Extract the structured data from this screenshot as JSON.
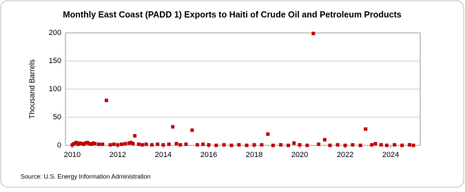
{
  "chart_data": {
    "type": "scatter",
    "title": "Monthly East Coast (PADD 1) Exports to Haiti of Crude Oil and Petroleum Products",
    "y_label": "Thousand Barrels",
    "source": "Source: U.S. Energy Information Administration",
    "color": "#c00000",
    "x": [
      2010.0,
      2010.08,
      2010.17,
      2010.25,
      2010.33,
      2010.42,
      2010.5,
      2010.58,
      2010.67,
      2010.75,
      2010.83,
      2010.92,
      2011.0,
      2011.17,
      2011.33,
      2011.5,
      2011.67,
      2011.83,
      2012.0,
      2012.17,
      2012.33,
      2012.5,
      2012.58,
      2012.67,
      2012.75,
      2012.92,
      2013.08,
      2013.25,
      2013.5,
      2013.75,
      2014.0,
      2014.25,
      2014.42,
      2014.58,
      2014.75,
      2015.0,
      2015.27,
      2015.5,
      2015.75,
      2016.0,
      2016.33,
      2016.67,
      2017.0,
      2017.33,
      2017.67,
      2018.0,
      2018.33,
      2018.6,
      2018.83,
      2019.17,
      2019.5,
      2019.75,
      2020.0,
      2020.33,
      2020.6,
      2020.83,
      2021.1,
      2021.33,
      2021.67,
      2022.0,
      2022.33,
      2022.67,
      2022.9,
      2023.17,
      2023.33,
      2023.58,
      2023.83,
      2024.17,
      2024.5,
      2024.83,
      2025.0
    ],
    "values": [
      1,
      3,
      5,
      2,
      4,
      3,
      2,
      4,
      5,
      3,
      2,
      4,
      3,
      2,
      2,
      80,
      1,
      2,
      1,
      2,
      3,
      4,
      5,
      3,
      17,
      2,
      1,
      2,
      1,
      2,
      1,
      2,
      33,
      3,
      1,
      2,
      27,
      1,
      2,
      1,
      0,
      1,
      0,
      1,
      0,
      1,
      1,
      20,
      0,
      1,
      0,
      4,
      1,
      0,
      199,
      2,
      10,
      0,
      1,
      0,
      1,
      0,
      29,
      1,
      3,
      1,
      0,
      1,
      0,
      1,
      0
    ],
    "xlim": [
      2009.7,
      2025.3
    ],
    "xticks": [
      2010,
      2012,
      2014,
      2016,
      2018,
      2020,
      2022,
      2024
    ],
    "ylim": [
      0,
      200
    ],
    "yticks": [
      0,
      50,
      100,
      150,
      200
    ],
    "grid": true
  }
}
